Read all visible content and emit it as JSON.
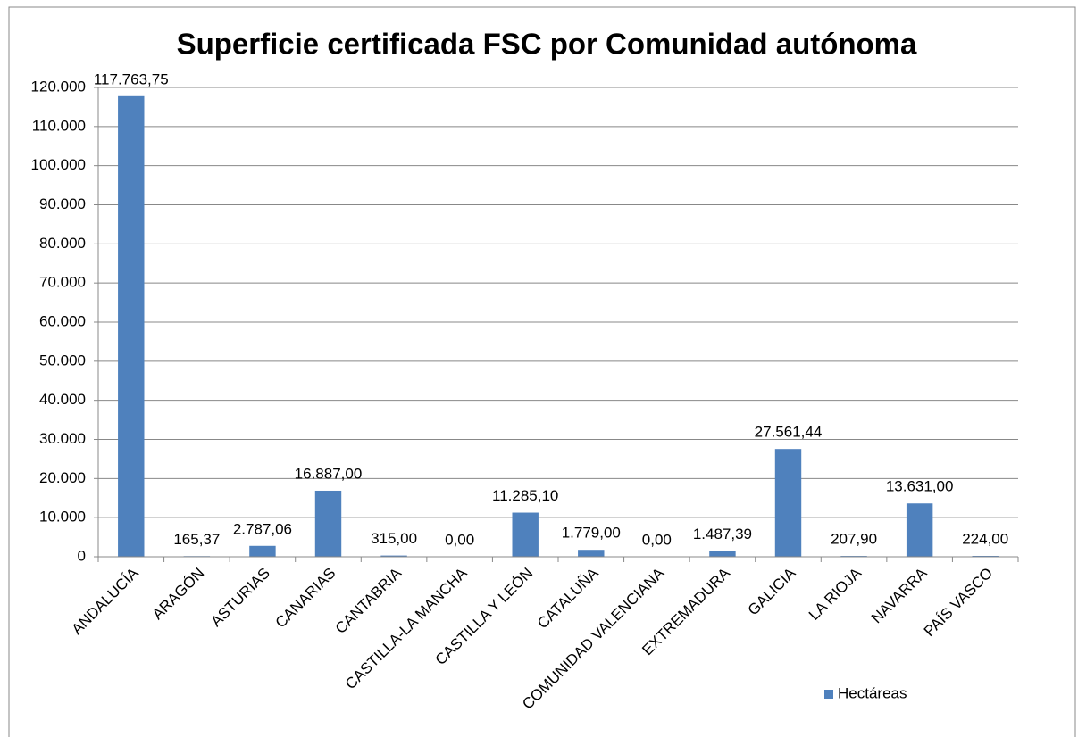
{
  "chart_data": {
    "type": "bar",
    "title": "Superficie certificada FSC por Comunidad autónoma",
    "categories": [
      "ANDALUCÍA",
      "ARAGÓN",
      "ASTURIAS",
      "CANARIAS",
      "CANTABRIA",
      "CASTILLA-LA MANCHA",
      "CASTILLA Y LEÓN",
      "CATALUÑA",
      "COMUNIDAD VALENCIANA",
      "EXTREMADURA",
      "GALICIA",
      "LA RIOJA",
      "NAVARRA",
      "PAÍS VASCO"
    ],
    "series": [
      {
        "name": "Hectáreas",
        "color": "#4f81bd",
        "values": [
          117763.75,
          165.37,
          2787.06,
          16887,
          315,
          0,
          11285.1,
          1779,
          0,
          1487.39,
          27561.44,
          207.9,
          13631,
          224
        ],
        "value_labels": [
          "117.763,75",
          "165,37",
          "2.787,06",
          "16.887,00",
          "315,00",
          "0,00",
          "11.285,10",
          "1.779,00",
          "0,00",
          "1.487,39",
          "27.561,44",
          "207,90",
          "13.631,00",
          "224,00"
        ]
      }
    ],
    "ylim": [
      0,
      120000
    ],
    "yticks": [
      0,
      {
        "value": 10000,
        "label": "10.000"
      },
      {
        "value": 20000,
        "label": "20.000"
      },
      {
        "value": 30000,
        "label": "30.000"
      },
      {
        "value": 40000,
        "label": "40.000"
      },
      {
        "value": 50000,
        "label": "50.000"
      },
      {
        "value": 60000,
        "label": "60.000"
      },
      {
        "value": 70000,
        "label": "70.000"
      },
      {
        "value": 80000,
        "label": "80.000"
      },
      {
        "value": 90000,
        "label": "90.000"
      },
      {
        "value": 100000,
        "label": "100.000"
      },
      {
        "value": 110000,
        "label": "110.000"
      },
      {
        "value": 120000,
        "label": "120.000"
      }
    ],
    "grid": true,
    "legend": "bottom-right"
  }
}
